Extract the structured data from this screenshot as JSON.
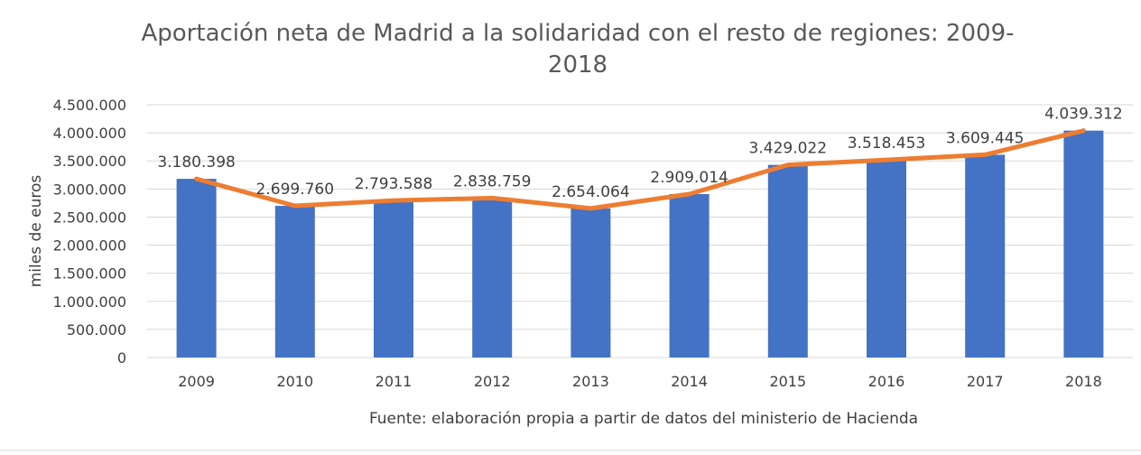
{
  "chart_data": {
    "type": "bar",
    "title_lines": [
      "Aportación neta de Madrid a la solidaridad con el resto de regiones: 2009-",
      "2018"
    ],
    "ylabel": "miles de euros",
    "xlabel": "Fuente: elaboración propia a partir de datos del ministerio de Hacienda",
    "categories": [
      "2009",
      "2010",
      "2011",
      "2012",
      "2013",
      "2014",
      "2015",
      "2016",
      "2017",
      "2018"
    ],
    "values": [
      3180398,
      2699760,
      2793588,
      2838759,
      2654064,
      2909014,
      3429022,
      3518453,
      3609445,
      4039312
    ],
    "data_labels": [
      "3.180.398",
      "2.699.760",
      "2.793.588",
      "2.838.759",
      "2.654.064",
      "2.909.014",
      "3.429.022",
      "3.518.453",
      "3.609.445",
      "4.039.312"
    ],
    "ylim": [
      0,
      4500000
    ],
    "y_ticks": [
      0,
      500000,
      1000000,
      1500000,
      2000000,
      2500000,
      3000000,
      3500000,
      4000000,
      4500000
    ],
    "y_tick_labels": [
      "0",
      "500.000",
      "1.000.000",
      "1.500.000",
      "2.000.000",
      "2.500.000",
      "3.000.000",
      "3.500.000",
      "4.000.000",
      "4.500.000"
    ],
    "grid": true,
    "overlay_line": true,
    "colors": {
      "bar": "#4472c4",
      "line": "#ed7d31"
    }
  }
}
